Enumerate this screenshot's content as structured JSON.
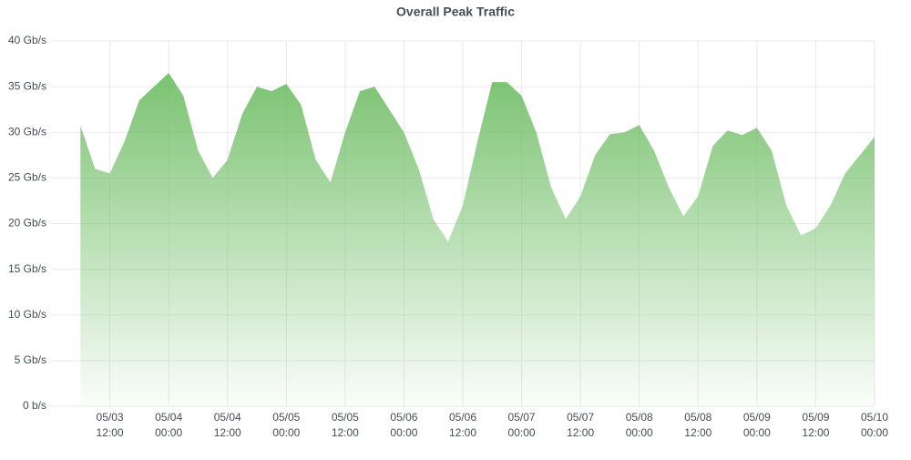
{
  "chart_data": {
    "type": "area",
    "title": "Overall Peak Traffic",
    "color": "#73bf69",
    "grid": true,
    "x": [
      "05/03 06:00",
      "05/03 09:00",
      "05/03 12:00",
      "05/03 15:00",
      "05/03 18:00",
      "05/03 21:00",
      "05/04 00:00",
      "05/04 03:00",
      "05/04 06:00",
      "05/04 09:00",
      "05/04 12:00",
      "05/04 15:00",
      "05/04 18:00",
      "05/04 21:00",
      "05/05 00:00",
      "05/05 03:00",
      "05/05 06:00",
      "05/05 09:00",
      "05/05 12:00",
      "05/05 15:00",
      "05/05 18:00",
      "05/05 21:00",
      "05/06 00:00",
      "05/06 03:00",
      "05/06 06:00",
      "05/06 09:00",
      "05/06 12:00",
      "05/06 15:00",
      "05/06 18:00",
      "05/06 21:00",
      "05/07 00:00",
      "05/07 03:00",
      "05/07 06:00",
      "05/07 09:00",
      "05/07 12:00",
      "05/07 15:00",
      "05/07 18:00",
      "05/07 21:00",
      "05/08 00:00",
      "05/08 03:00",
      "05/08 06:00",
      "05/08 09:00",
      "05/08 12:00",
      "05/08 15:00",
      "05/08 18:00",
      "05/08 21:00",
      "05/09 00:00",
      "05/09 03:00",
      "05/09 06:00",
      "05/09 09:00",
      "05/09 12:00",
      "05/09 15:00",
      "05/09 18:00",
      "05/09 21:00",
      "05/10 00:00"
    ],
    "values": [
      30.7,
      26,
      25.5,
      29,
      33.5,
      35,
      36.5,
      34,
      28,
      25,
      27,
      32,
      35,
      34.5,
      35.3,
      33,
      27,
      24.5,
      30,
      34.5,
      35,
      32.5,
      30,
      26,
      20.5,
      18,
      22,
      29,
      35.5,
      35.5,
      34,
      30,
      24,
      20.5,
      23,
      27.5,
      29.8,
      30,
      30.8,
      28,
      24,
      20.8,
      23,
      28.5,
      30.2,
      29.7,
      30.5,
      28,
      22,
      18.7,
      19.5,
      22,
      25.5,
      27.5,
      29.5
    ],
    "xlim": [
      "05/03 00:00",
      "05/10 00:00"
    ],
    "xticks": [
      {
        "value": "05/03 12:00",
        "label": [
          "05/03",
          "12:00"
        ]
      },
      {
        "value": "05/04 00:00",
        "label": [
          "05/04",
          "00:00"
        ]
      },
      {
        "value": "05/04 12:00",
        "label": [
          "05/04",
          "12:00"
        ]
      },
      {
        "value": "05/05 00:00",
        "label": [
          "05/05",
          "00:00"
        ]
      },
      {
        "value": "05/05 12:00",
        "label": [
          "05/05",
          "12:00"
        ]
      },
      {
        "value": "05/06 00:00",
        "label": [
          "05/06",
          "00:00"
        ]
      },
      {
        "value": "05/06 12:00",
        "label": [
          "05/06",
          "12:00"
        ]
      },
      {
        "value": "05/07 00:00",
        "label": [
          "05/07",
          "00:00"
        ]
      },
      {
        "value": "05/07 12:00",
        "label": [
          "05/07",
          "12:00"
        ]
      },
      {
        "value": "05/08 00:00",
        "label": [
          "05/08",
          "00:00"
        ]
      },
      {
        "value": "05/08 12:00",
        "label": [
          "05/08",
          "12:00"
        ]
      },
      {
        "value": "05/09 00:00",
        "label": [
          "05/09",
          "00:00"
        ]
      },
      {
        "value": "05/09 12:00",
        "label": [
          "05/09",
          "12:00"
        ]
      },
      {
        "value": "05/10 00:00",
        "label": [
          "05/10",
          "00:00"
        ]
      }
    ],
    "ylim": [
      0,
      40
    ],
    "yticks": [
      {
        "value": 0,
        "label": "0 b/s"
      },
      {
        "value": 5,
        "label": "5 Gb/s"
      },
      {
        "value": 10,
        "label": "10 Gb/s"
      },
      {
        "value": 15,
        "label": "15 Gb/s"
      },
      {
        "value": 20,
        "label": "20 Gb/s"
      },
      {
        "value": 25,
        "label": "25 Gb/s"
      },
      {
        "value": 30,
        "label": "30 Gb/s"
      },
      {
        "value": 35,
        "label": "35 Gb/s"
      },
      {
        "value": 40,
        "label": "40 Gb/s"
      }
    ]
  }
}
